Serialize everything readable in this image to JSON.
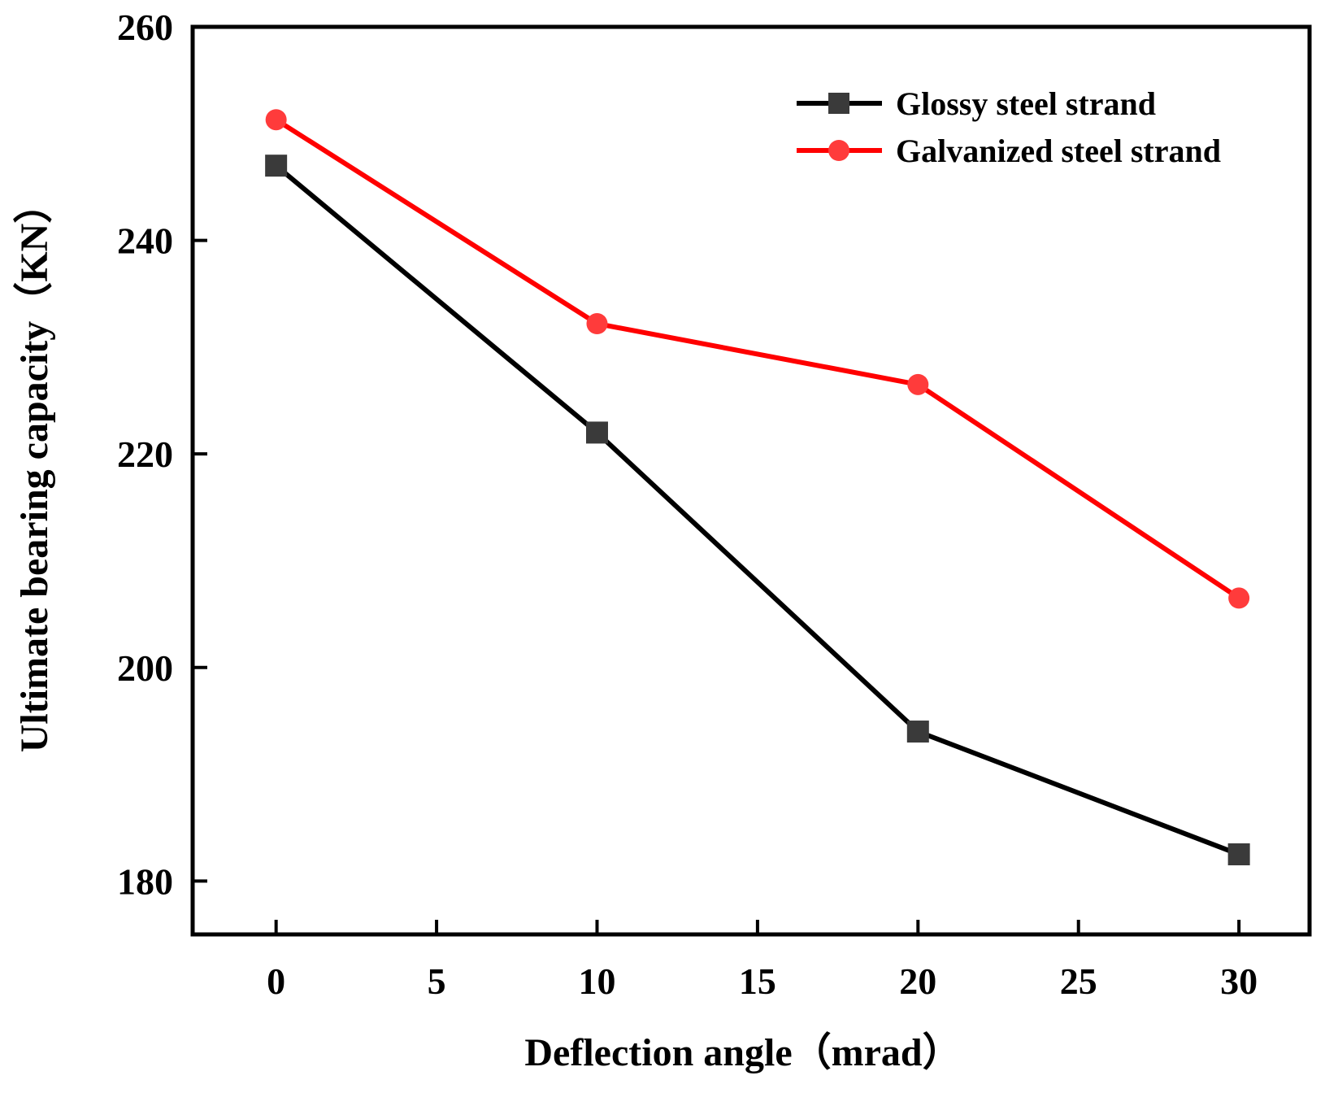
{
  "chart_data": {
    "type": "line",
    "xlabel": "Deflection angle（mrad）",
    "ylabel": "Ultimate bearing capacity（KN）",
    "xlim": [
      -2.6,
      32.2
    ],
    "ylim": [
      175,
      260
    ],
    "xticks": [
      0,
      5,
      10,
      15,
      20,
      25,
      30
    ],
    "yticks": [
      180,
      200,
      220,
      240,
      260
    ],
    "legend_position": "top-right",
    "series": [
      {
        "name": "Glossy steel strand",
        "color": "#000000",
        "marker": "square",
        "x": [
          0,
          10,
          20,
          30
        ],
        "y": [
          247,
          222,
          194,
          182.5
        ]
      },
      {
        "name": "Galvanized steel strand",
        "color": "#ff0000",
        "marker": "circle",
        "x": [
          0,
          10,
          20,
          30
        ],
        "y": [
          251.3,
          232.2,
          226.5,
          206.5
        ]
      }
    ]
  }
}
